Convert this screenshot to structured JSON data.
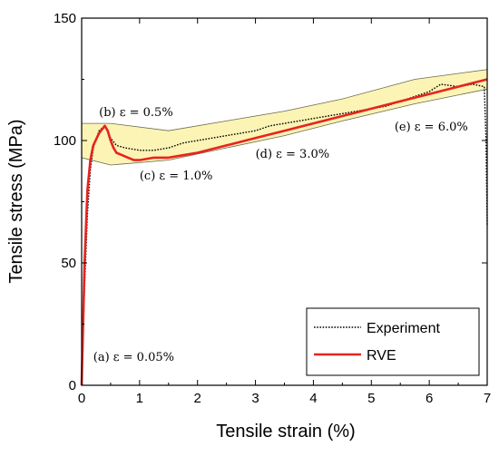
{
  "chart_data": {
    "type": "line",
    "xlabel": "Tensile strain (%)",
    "ylabel": "Tensile stress (MPa)",
    "xlim": [
      0,
      7
    ],
    "ylim": [
      0,
      150
    ],
    "xticks": [
      0,
      1,
      2,
      3,
      4,
      5,
      6,
      7
    ],
    "yticks": [
      0,
      50,
      100,
      150
    ],
    "grid": false,
    "legend_position": "bottom-right",
    "series": [
      {
        "name": "Experiment",
        "style": "dotted",
        "color": "#000000",
        "x": [
          0,
          0.02,
          0.05,
          0.1,
          0.15,
          0.2,
          0.3,
          0.4,
          0.45,
          0.5,
          0.6,
          0.75,
          1.0,
          1.25,
          1.5,
          1.75,
          2.0,
          2.25,
          2.5,
          2.75,
          3.0,
          3.25,
          3.5,
          3.75,
          4.0,
          4.25,
          4.5,
          4.75,
          5.0,
          5.25,
          5.5,
          5.75,
          6.0,
          6.2,
          6.5,
          6.75,
          6.95,
          6.98,
          7.0
        ],
        "y": [
          0,
          15,
          40,
          70,
          88,
          97,
          104,
          106,
          104,
          101,
          98,
          97,
          96,
          96,
          97,
          99,
          100,
          101,
          102,
          103,
          104,
          106,
          107,
          108,
          109,
          110,
          111,
          112,
          113,
          114,
          116,
          118,
          120,
          123,
          122,
          123,
          122,
          100,
          65
        ]
      },
      {
        "name": "RVE",
        "style": "solid",
        "color": "#e8231f",
        "x": [
          0,
          0.02,
          0.05,
          0.1,
          0.15,
          0.2,
          0.3,
          0.4,
          0.45,
          0.5,
          0.55,
          0.6,
          0.7,
          0.8,
          0.9,
          1.0,
          1.25,
          1.5,
          1.75,
          2.0,
          2.5,
          3.0,
          3.5,
          4.0,
          4.5,
          5.0,
          5.5,
          6.0,
          6.5,
          7.0
        ],
        "y": [
          0,
          20,
          50,
          80,
          92,
          98,
          103,
          106,
          104,
          100,
          97,
          95,
          94,
          93,
          92,
          92,
          93,
          93,
          94,
          95,
          98,
          101,
          104,
          107,
          110,
          113,
          116,
          119,
          122,
          125
        ]
      }
    ],
    "band": {
      "color": "#fbf4b5",
      "x": [
        0,
        0.5,
        1.5,
        2.5,
        3.5,
        4.5,
        5.75,
        7.0
      ],
      "upper": [
        107,
        107,
        104,
        108,
        112,
        117,
        125,
        129
      ],
      "lower": [
        93,
        90,
        92,
        97,
        102,
        108,
        115,
        121
      ]
    },
    "annotations": [
      {
        "text": "(a) ε = 0.05%",
        "x": 0.2,
        "y": 10
      },
      {
        "text": "(b) ε = 0.5%",
        "x": 0.3,
        "y": 110
      },
      {
        "text": "(c) ε = 1.0%",
        "x": 1.0,
        "y": 84
      },
      {
        "text": "(d) ε = 3.0%",
        "x": 3.0,
        "y": 93
      },
      {
        "text": "(e) ε = 6.0%",
        "x": 5.4,
        "y": 104
      }
    ]
  }
}
